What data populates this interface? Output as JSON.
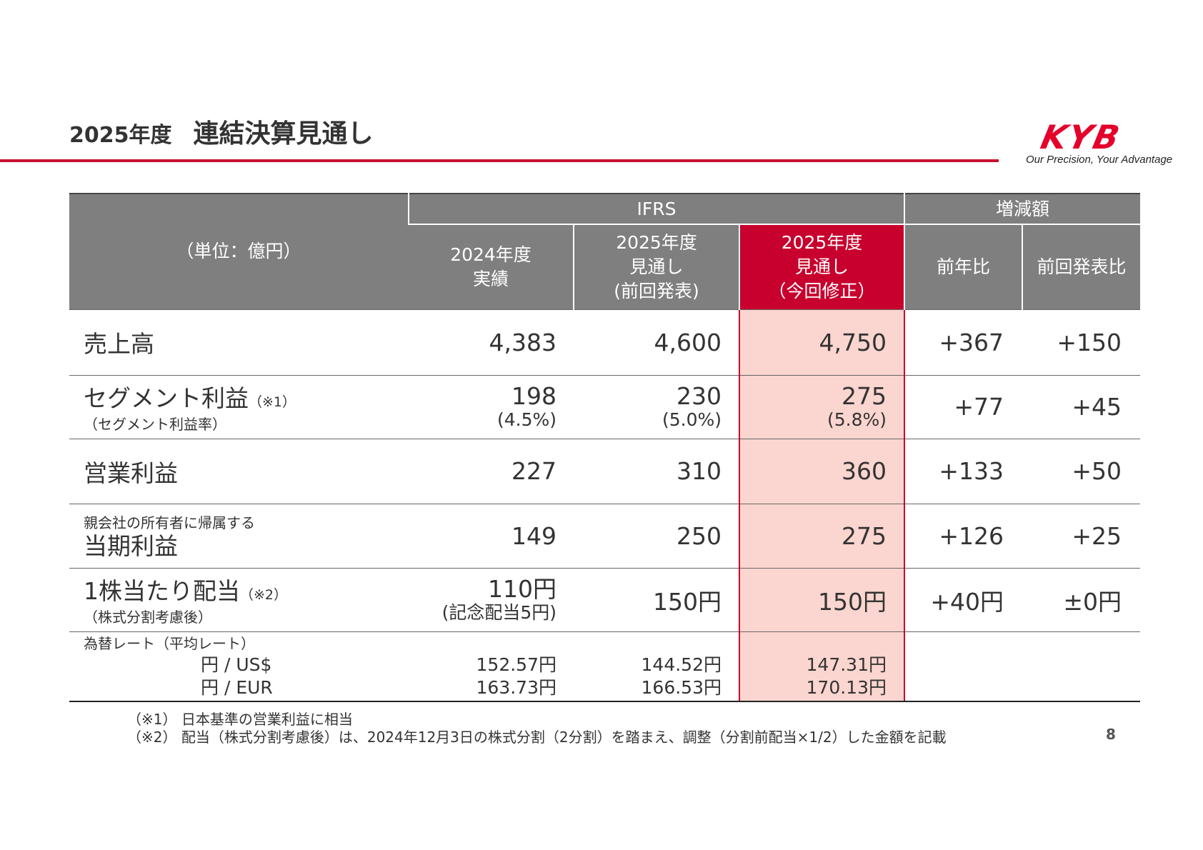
{
  "header": {
    "year": "2025年度",
    "title": "連結決算見通し"
  },
  "logo": {
    "mark": "KYB",
    "tagline": "Our Precision, Your Advantage"
  },
  "table": {
    "unit_label": "（単位：億円）",
    "group_ifrs": "IFRS",
    "group_diff": "増減額",
    "columns": [
      "2024年度 実績",
      "2025年度 見通し (前回発表)",
      "2025年度 見通し (今回修正)",
      "前年比",
      "前回発表比"
    ],
    "col_lines": [
      [
        "2024年度",
        "実績"
      ],
      [
        "2025年度",
        "見通し",
        "(前回発表)"
      ],
      [
        "2025年度",
        "見通し",
        "（今回修正）"
      ]
    ],
    "rows": [
      {
        "label": "売上高",
        "values": [
          "4,383",
          "4,600",
          "4,750"
        ],
        "diffs": [
          "+367",
          "+150"
        ]
      },
      {
        "label": "セグメント利益",
        "note": "（※1）",
        "sublabel": "（セグメント利益率）",
        "values": [
          "198",
          "230",
          "275"
        ],
        "subvalues": [
          "(4.5%)",
          "(5.0%)",
          "(5.8%)"
        ],
        "diffs": [
          "+77",
          "+45"
        ]
      },
      {
        "label": "営業利益",
        "values": [
          "227",
          "310",
          "360"
        ],
        "diffs": [
          "+133",
          "+50"
        ]
      },
      {
        "prelabel": "親会社の所有者に帰属する",
        "label": "当期利益",
        "values": [
          "149",
          "250",
          "275"
        ],
        "diffs": [
          "+126",
          "+25"
        ]
      },
      {
        "label": "1株当たり配当",
        "note": "（※2）",
        "sublabel": "（株式分割考慮後）",
        "values": [
          "110円",
          "150円",
          "150円"
        ],
        "subvalues": [
          "(記念配当5円)",
          "",
          ""
        ],
        "diffs": [
          "+40円",
          "±0円"
        ]
      }
    ],
    "fx": {
      "label": "為替レート（平均レート）",
      "usd_label": "円 / US$",
      "eur_label": "円 / EUR",
      "usd": [
        "152.57円",
        "144.52円",
        "147.31円"
      ],
      "eur": [
        "163.73円",
        "166.53円",
        "170.13円"
      ]
    }
  },
  "footnotes": [
    "（※1） 日本基準の営業利益に相当",
    "（※2） 配当（株式分割考慮後）は、2024年12月3日の株式分割（2分割）を踏まえ、調整（分割前配当×1/2）した金額を記載"
  ],
  "page_number": "8",
  "colors": {
    "accent": "#c8002d",
    "header_gray": "#7f7f7f",
    "highlight": "#fbd5cf"
  }
}
